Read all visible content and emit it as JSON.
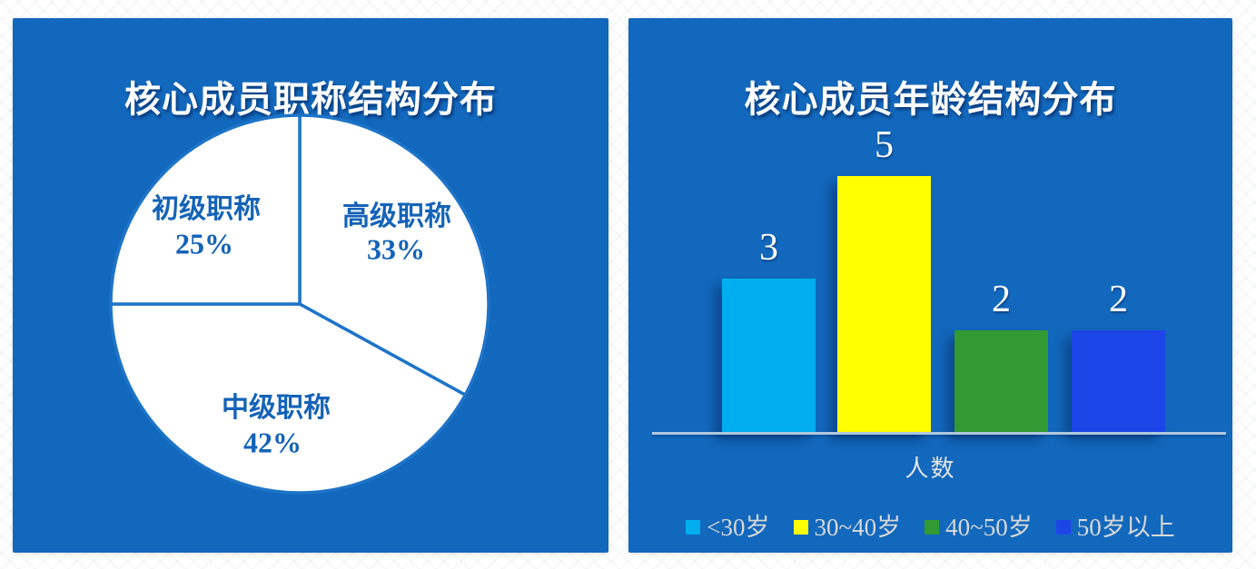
{
  "theme": {
    "panel_bg": "#1268bd",
    "title_color": "#ffffff",
    "pie_fill": "#ffffff",
    "pie_divider_color": "#1e74c8",
    "pie_label_color": "#1463b8",
    "axis_line_color": "#b0c8de",
    "muted_text_color": "#d9d9d9"
  },
  "chart_data": [
    {
      "type": "pie",
      "title": "核心成员职称结构分布",
      "labels": [
        "高级职称",
        "中级职称",
        "初级职称"
      ],
      "values": [
        33,
        42,
        25
      ],
      "value_labels": [
        "33%",
        "42%",
        "25%"
      ],
      "start_angle_deg": 0,
      "direction": "clockwise",
      "slice_fill": "#ffffff",
      "divider_color": "#1e74c8",
      "label_color": "#1463b8",
      "legend_position": "none"
    },
    {
      "type": "bar",
      "title": "核心成员年龄结构分布",
      "categories": [
        "<30岁",
        "30~40岁",
        "40~50岁",
        "50岁以上"
      ],
      "values": [
        3,
        5,
        2,
        2
      ],
      "bar_colors": [
        "#00aeef",
        "#ffff00",
        "#339933",
        "#1c45e8"
      ],
      "value_label_color": "#ffffff",
      "xlabel": "人数",
      "ylabel": "",
      "ylim": [
        0,
        5
      ],
      "grid": false,
      "legend_position": "bottom"
    }
  ]
}
